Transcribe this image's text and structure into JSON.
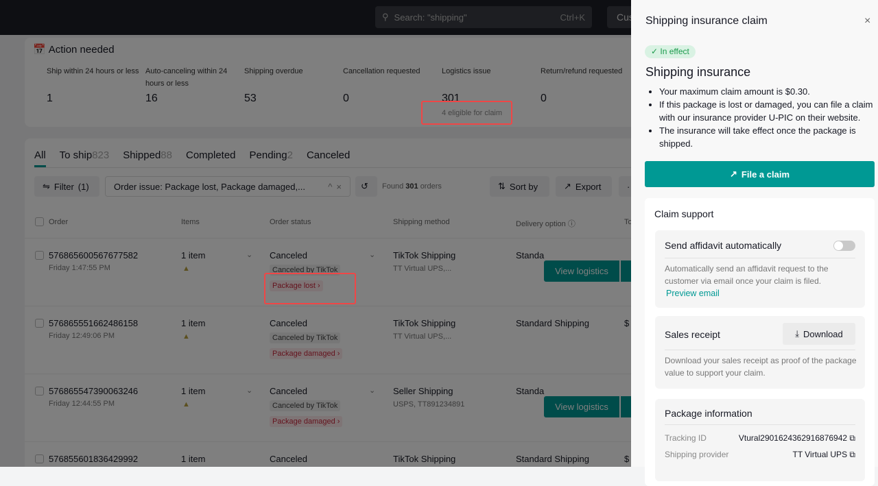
{
  "topbar": {
    "search_placeholder": "Search: \"shipping\"",
    "shortcut": "Ctrl+K",
    "button_partial": "Cus"
  },
  "action_needed": {
    "title": "Action needed",
    "metrics": [
      {
        "label": "Ship within 24 hours or less",
        "value": "1"
      },
      {
        "label": "Auto-canceling within 24 hours or less",
        "value": "16"
      },
      {
        "label": "Shipping overdue",
        "value": "53"
      },
      {
        "label": "Cancellation requested",
        "value": "0"
      },
      {
        "label": "Logistics issue",
        "value": "301",
        "note": "4 eligible for claim"
      },
      {
        "label": "Return/refund requested",
        "value": "0"
      }
    ]
  },
  "tabs": [
    {
      "label": "All",
      "count": ""
    },
    {
      "label": "To ship",
      "count": "823"
    },
    {
      "label": "Shipped",
      "count": "88"
    },
    {
      "label": "Completed",
      "count": ""
    },
    {
      "label": "Pending",
      "count": "2"
    },
    {
      "label": "Canceled",
      "count": ""
    }
  ],
  "filters": {
    "filter_label": "Filter",
    "filter_count": "(1)",
    "chip": "Order issue:  Package lost, Package damaged,...",
    "found_prefix": "Found",
    "found_count": "301",
    "found_suffix": "orders",
    "sort": "Sort by",
    "export": "Export"
  },
  "table": {
    "headers": [
      "Order",
      "Items",
      "Order status",
      "Shipping method",
      "Delivery option",
      "To"
    ],
    "rows": [
      {
        "id": "576865600567677582",
        "time": "Friday 1:47:55 PM",
        "items": "1 item",
        "status": "Canceled",
        "sub": "Canceled by TikTok",
        "issue": "Package lost",
        "ship": "TikTok Shipping",
        "ship_sub": "TT Virtual UPS,...",
        "delivery": "Standa",
        "total": "",
        "action": "View logistics"
      },
      {
        "id": "576865551662486158",
        "time": "Friday 12:49:06 PM",
        "items": "1 item",
        "status": "Canceled",
        "sub": "Canceled by TikTok",
        "issue": "Package damaged",
        "ship": "TikTok Shipping",
        "ship_sub": "TT Virtual UPS,...",
        "delivery": "Standard Shipping",
        "total": "$",
        "action": ""
      },
      {
        "id": "576865547390063246",
        "time": "Friday 12:44:55 PM",
        "items": "1 item",
        "status": "Canceled",
        "sub": "Canceled by TikTok",
        "issue": "Package damaged",
        "ship": "Seller Shipping",
        "ship_sub": "USPS, TT891234891",
        "delivery": "Standa",
        "total": "",
        "action": "View logistics"
      },
      {
        "id": "576855601836429992",
        "time": "",
        "items": "1 item",
        "status": "Canceled",
        "sub": "",
        "issue": "",
        "ship": "TikTok Shipping",
        "ship_sub": "",
        "delivery": "Standard Shipping",
        "total": "$",
        "action": ""
      }
    ]
  },
  "panel": {
    "title": "Shipping insurance claim",
    "badge": "In effect",
    "heading": "Shipping insurance",
    "bullets": [
      "Your maximum claim amount is $0.30.",
      "If this package is lost or damaged, you can file a claim with our insurance provider U-PIC on their website.",
      "The insurance will take effect once the package is shipped."
    ],
    "file_claim": "File a claim",
    "support_title": "Claim support",
    "affidavit": {
      "title": "Send affidavit automatically",
      "enabled": false,
      "desc": "Automatically send an affidavit request to the customer via email once your claim is filed.",
      "link": "Preview email"
    },
    "receipt": {
      "title": "Sales receipt",
      "button": "Download",
      "desc": "Download your sales receipt as proof of the package value to support your claim."
    },
    "package": {
      "title": "Package information",
      "tracking_label": "Tracking ID",
      "tracking_value": "Vtural2901624362916876942",
      "provider_label": "Shipping provider",
      "provider_value": "TT Virtual UPS"
    }
  },
  "colors": {
    "accent": "#009994",
    "highlight": "#f04646",
    "badge_green": "#1a9a4b"
  }
}
